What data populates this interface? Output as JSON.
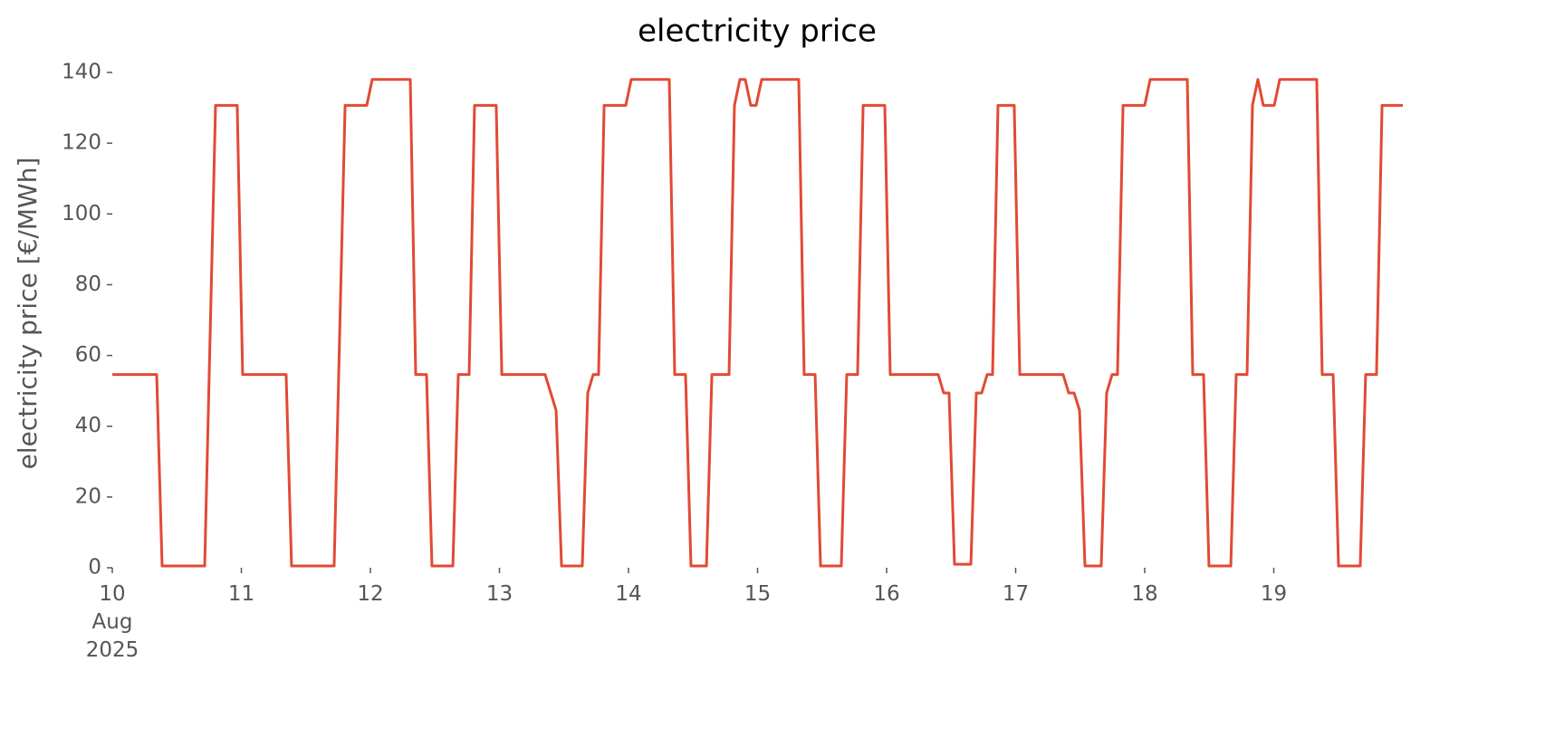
{
  "chart_data": {
    "type": "line",
    "title": "electricity price",
    "y_label": "electricity price [€/MWh]",
    "color": "#e24a33",
    "x": [
      10,
      10.344,
      10.386,
      10.716,
      10.8,
      10.968,
      11.01,
      11.347,
      11.389,
      11.719,
      11.804,
      11.972,
      12.014,
      12.309,
      12.351,
      12.435,
      12.477,
      12.639,
      12.681,
      12.765,
      12.807,
      12.975,
      13.018,
      13.354,
      13.439,
      13.481,
      13.642,
      13.684,
      13.726,
      13.768,
      13.811,
      13.979,
      14.021,
      14.316,
      14.358,
      14.442,
      14.484,
      14.604,
      14.646,
      14.779,
      14.821,
      14.863,
      14.905,
      14.947,
      14.989,
      15.032,
      15.319,
      15.361,
      15.446,
      15.488,
      15.649,
      15.691,
      15.775,
      15.818,
      15.986,
      16.028,
      16.4,
      16.442,
      16.484,
      16.526,
      16.653,
      16.695,
      16.737,
      16.779,
      16.821,
      16.863,
      16.989,
      17.032,
      17.368,
      17.411,
      17.453,
      17.495,
      17.537,
      17.663,
      17.705,
      17.747,
      17.789,
      17.832,
      18,
      18.042,
      18.33,
      18.372,
      18.456,
      18.498,
      18.667,
      18.709,
      18.793,
      18.835,
      18.877,
      18.919,
      19.004,
      19.046,
      19.333,
      19.375,
      19.46,
      19.502,
      19.67,
      19.712,
      19.796,
      19.839,
      20
    ],
    "values": [
      54.6,
      54.6,
      0.5,
      0.5,
      130.7,
      130.7,
      54.6,
      54.6,
      0.5,
      0.5,
      130.7,
      130.7,
      138,
      138,
      54.6,
      54.6,
      0.5,
      0.5,
      54.6,
      54.6,
      130.7,
      130.7,
      54.6,
      54.6,
      44.5,
      0.5,
      0.5,
      49.4,
      54.6,
      54.6,
      130.7,
      130.7,
      138,
      138,
      54.6,
      54.6,
      0.5,
      0.5,
      54.6,
      54.6,
      130.7,
      138,
      138,
      130.7,
      130.7,
      138,
      138,
      54.6,
      54.6,
      0.5,
      0.5,
      54.6,
      54.6,
      130.7,
      130.7,
      54.6,
      54.6,
      49.4,
      49.4,
      1,
      1,
      49.4,
      49.4,
      54.6,
      54.6,
      130.7,
      130.7,
      54.6,
      54.6,
      49.4,
      49.4,
      44.5,
      0.5,
      0.5,
      49.4,
      54.6,
      54.6,
      130.7,
      130.7,
      138,
      138,
      54.6,
      54.6,
      0.5,
      0.5,
      54.6,
      54.6,
      130.7,
      138,
      130.7,
      130.7,
      138,
      138,
      54.6,
      54.6,
      0.5,
      0.5,
      54.6,
      54.6,
      130.7,
      130.7
    ],
    "xlim": [
      10,
      20
    ],
    "xticks": [
      {
        "value": 10,
        "label": "10 Aug 2025"
      },
      11,
      12,
      13,
      14,
      15,
      16,
      17,
      18,
      19
    ],
    "ylim": [
      0,
      140
    ],
    "yticks": [
      0,
      20,
      40,
      60,
      80,
      100,
      120,
      140
    ]
  }
}
